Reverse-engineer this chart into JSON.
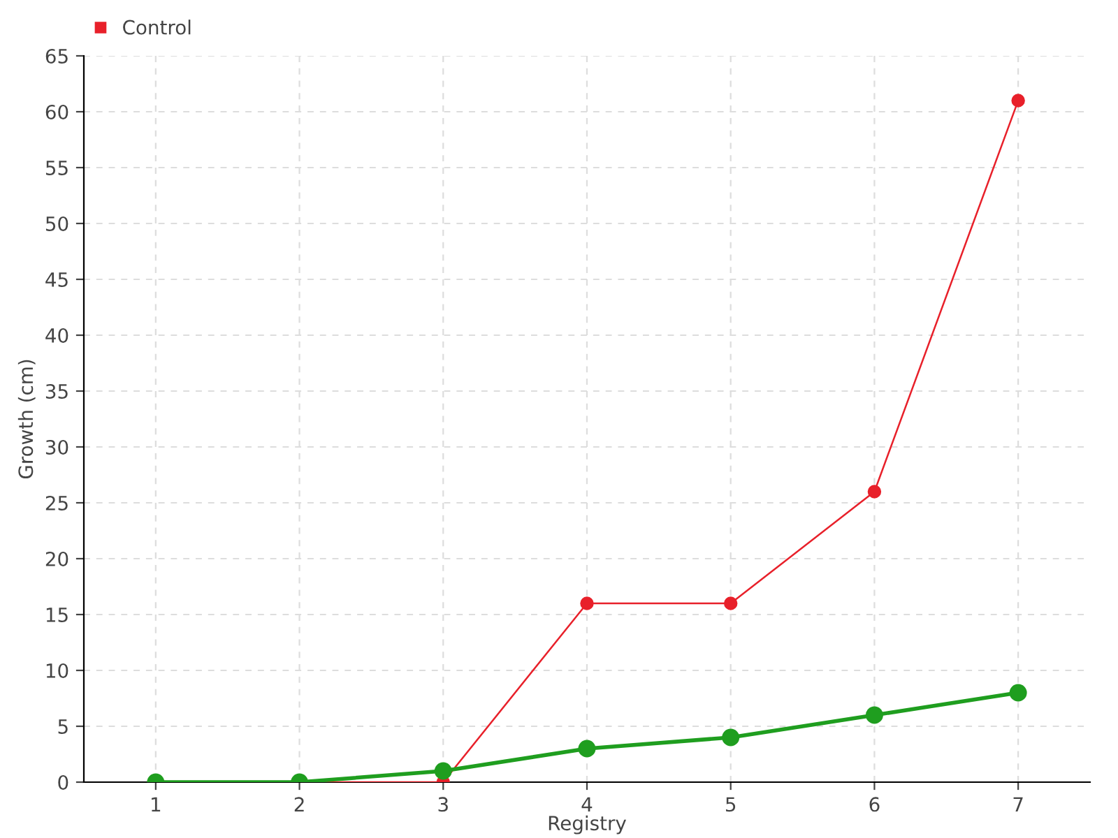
{
  "chart_data": {
    "type": "line",
    "xlabel": "Registry",
    "ylabel": "Growth (cm)",
    "categories": [
      "1",
      "2",
      "3",
      "4",
      "5",
      "6",
      "7"
    ],
    "series": [
      {
        "color": "#1f9e1f",
        "values": [
          0,
          0,
          1,
          3,
          4,
          6,
          8
        ]
      },
      {
        "name": "Control",
        "color": "#e8202a",
        "values": [
          0,
          0,
          0,
          16,
          16,
          26,
          61
        ]
      }
    ],
    "ylim": [
      0,
      65
    ],
    "yticks": [
      0,
      5,
      10,
      15,
      20,
      25,
      30,
      35,
      40,
      45,
      50,
      55,
      60,
      65
    ],
    "grid": true,
    "legend": "top left",
    "marker": "circle",
    "line_style": "solid"
  }
}
